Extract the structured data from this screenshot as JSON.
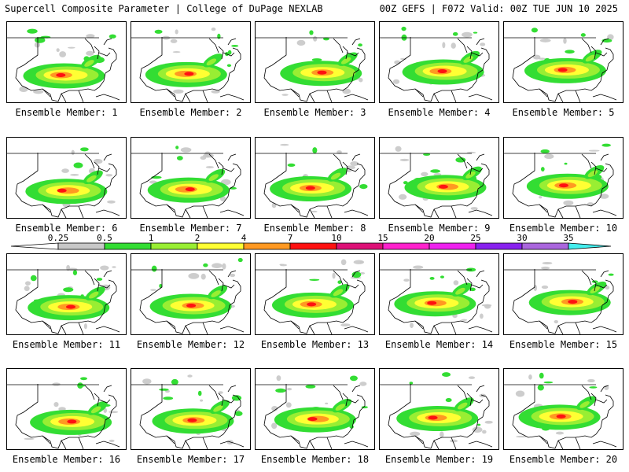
{
  "header": {
    "title": "Supercell Composite Parameter | College of DuPage NEXLAB",
    "run_info": "00Z GEFS | F072 Valid: 00Z TUE JUN 10 2025"
  },
  "caption_prefix": "Ensemble Member: ",
  "members": [
    "1",
    "2",
    "3",
    "4",
    "5",
    "6",
    "7",
    "8",
    "9",
    "10",
    "11",
    "12",
    "13",
    "14",
    "15",
    "16",
    "17",
    "18",
    "19",
    "20"
  ],
  "colorbar": {
    "ticks": [
      "0.25",
      "0.5",
      "1",
      "2",
      "4",
      "7",
      "10",
      "15",
      "20",
      "25",
      "30",
      "35"
    ],
    "colors": [
      "#c8c8c8",
      "#33dd33",
      "#99ee33",
      "#ffff33",
      "#ff9922",
      "#ff1111",
      "#dd1177",
      "#ff22cc",
      "#ee22ee",
      "#8822ee",
      "#aa66dd",
      "#44eeee"
    ]
  }
}
